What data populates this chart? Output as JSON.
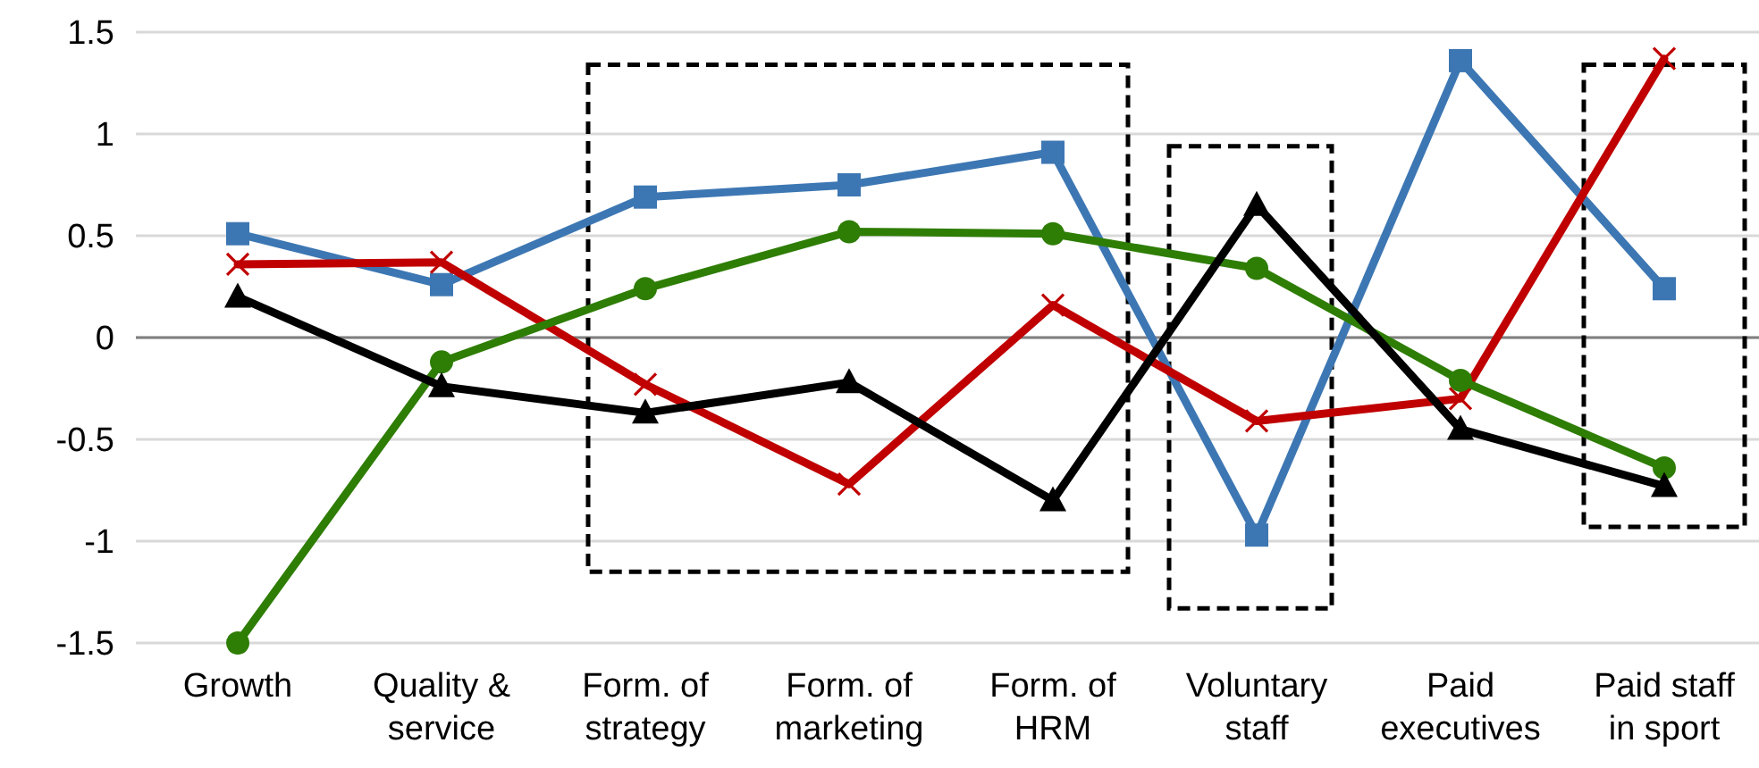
{
  "chart_data": {
    "type": "line",
    "categories": [
      "Growth",
      "Quality & service",
      "Form. of strategy",
      "Form. of marketing",
      "Form. of HRM",
      "Voluntary staff",
      "Paid executives",
      "Paid staff in sport"
    ],
    "series": [
      {
        "color": "#3d77b3",
        "marker": "square",
        "values": [
          0.51,
          0.26,
          0.69,
          0.75,
          0.91,
          -0.97,
          1.36,
          0.24
        ]
      },
      {
        "color": "#c00000",
        "marker": "cross",
        "values": [
          0.36,
          0.37,
          -0.23,
          -0.72,
          0.16,
          -0.41,
          -0.3,
          1.37
        ]
      },
      {
        "color": "#2e7d05",
        "marker": "circle",
        "values": [
          -1.5,
          -0.12,
          0.24,
          0.52,
          0.51,
          0.34,
          -0.21,
          -0.64
        ]
      },
      {
        "color": "#000000",
        "marker": "triangle",
        "values": [
          0.2,
          -0.24,
          -0.37,
          -0.22,
          -0.8,
          0.65,
          -0.45,
          -0.73
        ]
      }
    ],
    "ylim": [
      -1.5,
      1.5
    ],
    "yticks": [
      -1.5,
      -1,
      -0.5,
      0,
      0.5,
      1,
      1.5
    ],
    "grid": "y",
    "line_style": "solid"
  }
}
